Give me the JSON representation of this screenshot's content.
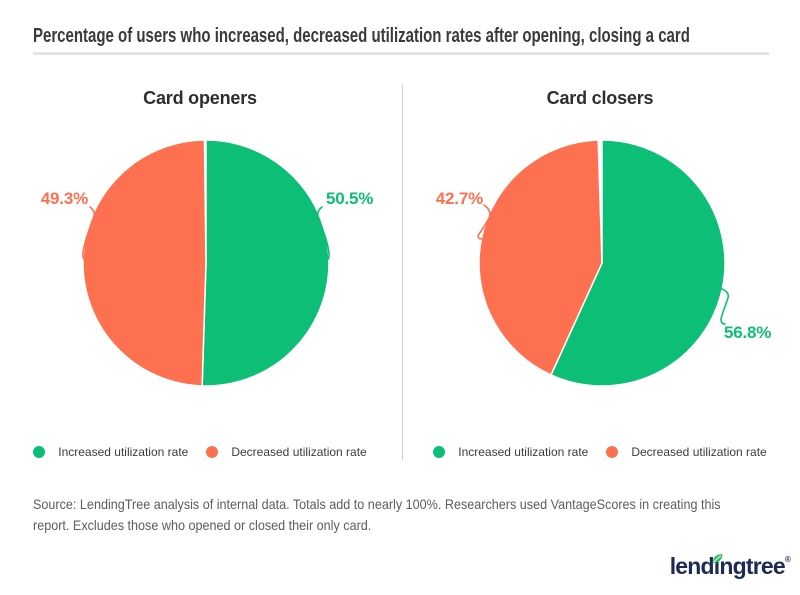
{
  "header": {
    "title": "Percentage of users who increased, decreased utilization rates after opening, closing a card"
  },
  "chart_data": [
    {
      "type": "pie",
      "title": "Card openers",
      "start_angle_deg": 0,
      "direction": "clockwise",
      "slices": [
        {
          "name": "Increased utilization rate",
          "value": 50.5,
          "label": "50.5%",
          "color": "#0dbe76"
        },
        {
          "name": "Decreased utilization rate",
          "value": 49.3,
          "label": "49.3%",
          "color": "#fd7150"
        }
      ]
    },
    {
      "type": "pie",
      "title": "Card closers",
      "start_angle_deg": 0,
      "direction": "clockwise",
      "slices": [
        {
          "name": "Increased utilization rate",
          "value": 56.8,
          "label": "56.8%",
          "color": "#0dbe76"
        },
        {
          "name": "Decreased utilization rate",
          "value": 42.7,
          "label": "42.7%",
          "color": "#fd7150"
        }
      ]
    }
  ],
  "source": {
    "line1": "Source: LendingTree analysis of internal data. Totals add to nearly 100%. Researchers used VantageScores in creating this",
    "line2": "report. Excludes those who opened or closed their only card."
  },
  "logo": {
    "text_pre": "lend",
    "text_i": "ı",
    "text_post": "ngtree",
    "registered": "®",
    "navy": "#1b2b54",
    "leaf_green": "#21c35d"
  }
}
